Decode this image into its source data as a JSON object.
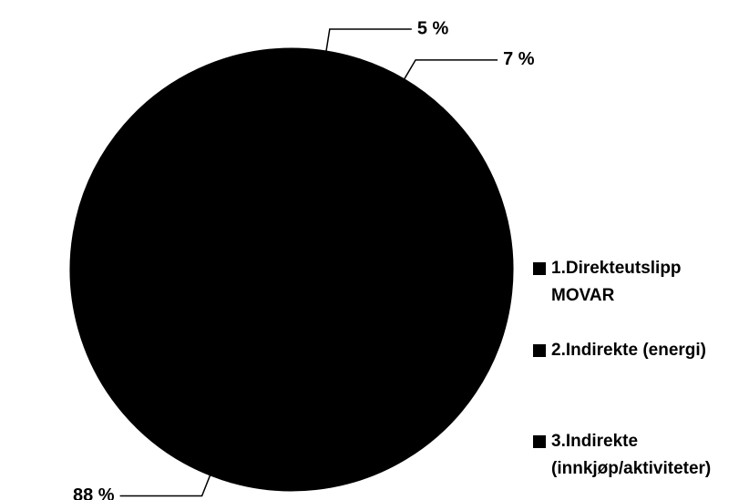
{
  "chart_data": {
    "type": "pie",
    "categories": [
      "1.Direkteutslipp MOVAR",
      "2.Indirekte (energi)",
      "3.Indirekte (innkjøp/aktiviteter)"
    ],
    "values": [
      5,
      7,
      88
    ],
    "value_labels": [
      "5 %",
      "7 %",
      "88 %"
    ],
    "colors": [
      "#000000",
      "#000000",
      "#000000"
    ],
    "legend": "right"
  }
}
